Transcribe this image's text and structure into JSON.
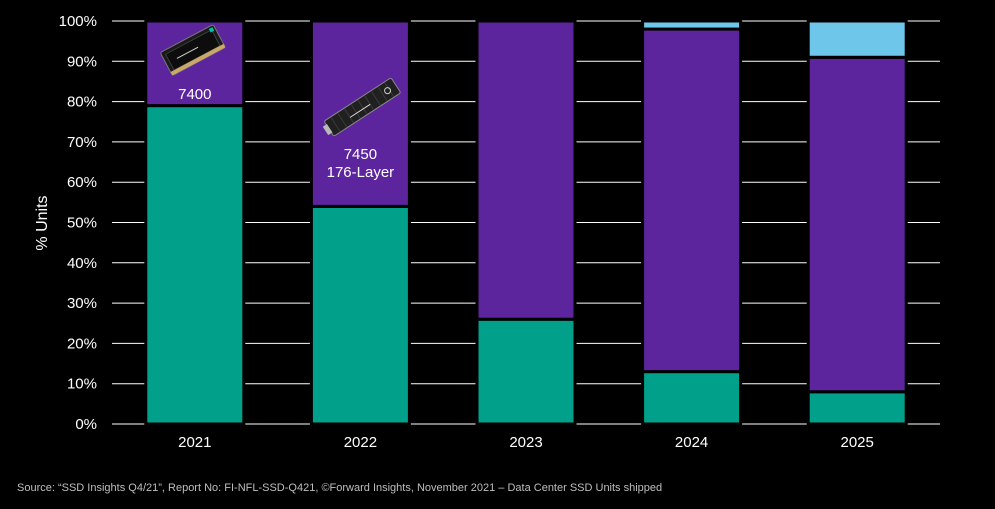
{
  "chart_data": {
    "type": "bar",
    "stacked": true,
    "title": "",
    "xlabel": "",
    "ylabel": "% Units",
    "ylim": [
      0,
      100
    ],
    "yticks": [
      "0%",
      "10%",
      "20%",
      "30%",
      "40%",
      "50%",
      "60%",
      "70%",
      "80%",
      "90%",
      "100%"
    ],
    "categories": [
      "2021",
      "2022",
      "2023",
      "2024",
      "2025"
    ],
    "grid": true,
    "series": [
      {
        "color": "#00a08a",
        "values": [
          79,
          54,
          26,
          13,
          8
        ]
      },
      {
        "color": "#5c259d",
        "values": [
          21,
          46,
          74,
          85,
          83
        ]
      },
      {
        "color": "#6ec6ea",
        "values": [
          0,
          0,
          0,
          2,
          9
        ]
      }
    ],
    "annotations": [
      {
        "category": "2021",
        "icon": "ssd-drive-icon",
        "lines": [
          "7400"
        ]
      },
      {
        "category": "2022",
        "icon": "m2-ssd-icon",
        "lines": [
          "7450",
          "176-Layer"
        ]
      }
    ]
  },
  "source_text": "Source: “SSD Insights Q4/21”, Report No: FI-NFL-SSD-Q421, ©Forward Insights, November 2021 –  Data Center SSD Units shipped"
}
